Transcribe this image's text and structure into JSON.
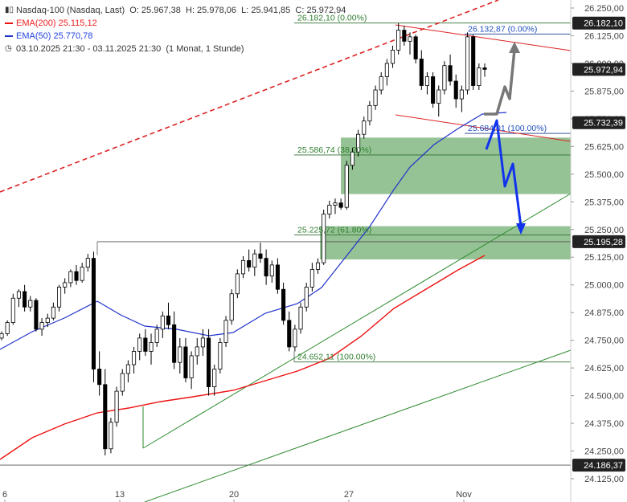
{
  "legend": {
    "instrument": "Nasdaq-100 (Nasdaq, Last)",
    "open": "O: 25.967,38",
    "high": "H: 25.978,06",
    "low": "L: 25.941,85",
    "close": "C: 25.972,94",
    "ema200": "EMA(200) 25.115,12",
    "ema50": "EMA(50) 25.770,78",
    "range": "03.10.2025 21:30 - 03.11.2025 21:30",
    "interval": "(1 Monat, 1 Stunde)"
  },
  "colors": {
    "up_candle": "#ffffff",
    "down_candle": "#000000",
    "ema200": "#ee1111",
    "ema50": "#2233cc",
    "trend_green": "#2e8b2e",
    "zone_green": "#8fc08f",
    "fib_text": "#2e7d2e",
    "fib_text_blue": "#1f4fbf",
    "tag_bg": "#222222",
    "arrow_blue": "#1133ee",
    "arrow_gray": "#777777"
  },
  "chart_data": {
    "type": "candlestick",
    "y_axis": {
      "range": [
        24100,
        26275
      ],
      "ticks": [
        24125,
        24250,
        24375,
        24500,
        24625,
        24750,
        24875,
        25000,
        25125,
        25250,
        25375,
        25500,
        25625,
        25750,
        25875,
        26000,
        26125,
        26250
      ],
      "tick_labels": [
        "24.125,00",
        "24.250,00",
        "24.375,00",
        "24.500,00",
        "24.625,00",
        "24.750,00",
        "24.875,00",
        "25.000,00",
        "25.125,00",
        "25.250,00",
        "25.375,00",
        "25.500,00",
        "25.625,00",
        "25.750,00",
        "25.875,00",
        "26.000,00",
        "26.125,00",
        "26.250,00"
      ]
    },
    "x_axis": {
      "ticks": [
        "6",
        "13",
        "20",
        "27",
        "Nov"
      ]
    },
    "price_tags": [
      {
        "value": 26182.1,
        "label": "26.182,10"
      },
      {
        "value": 25972.94,
        "label": "25.972,94"
      },
      {
        "value": 25732.39,
        "label": "25.732,39"
      },
      {
        "value": 25195.28,
        "label": "25.195,28"
      },
      {
        "value": 24186.37,
        "label": "24.186,37"
      }
    ],
    "fib_levels": [
      {
        "value": 26182.1,
        "label": "26.182,10 (0.00%)"
      },
      {
        "value": 26132.87,
        "label": "26.132,87 (0.00%)"
      },
      {
        "value": 25684.01,
        "label": "25.684,01 (100.00%)"
      },
      {
        "value": 25586.74,
        "label": "25.586,74 (38.20%)"
      },
      {
        "value": 25225.72,
        "label": "25.225,72 (61.80%)"
      },
      {
        "value": 24652.11,
        "label": "24.652,11 (100.00%)"
      }
    ],
    "zones": [
      {
        "from": 25410,
        "to": 25665
      },
      {
        "from": 25115,
        "to": 25265
      }
    ],
    "candles": [
      [
        24760,
        24790,
        24750,
        24780
      ],
      [
        24780,
        24840,
        24770,
        24830
      ],
      [
        24830,
        24960,
        24820,
        24940
      ],
      [
        24940,
        24980,
        24900,
        24970
      ],
      [
        24970,
        25000,
        24880,
        24900
      ],
      [
        24900,
        24950,
        24880,
        24930
      ],
      [
        24930,
        24940,
        24790,
        24800
      ],
      [
        24800,
        24850,
        24770,
        24830
      ],
      [
        24830,
        24870,
        24810,
        24850
      ],
      [
        24850,
        24920,
        24840,
        24900
      ],
      [
        24900,
        25000,
        24880,
        24990
      ],
      [
        24990,
        25030,
        24960,
        25010
      ],
      [
        25010,
        25070,
        24990,
        25060
      ],
      [
        25060,
        25090,
        25000,
        25020
      ],
      [
        25020,
        25100,
        25010,
        25080
      ],
      [
        25080,
        25140,
        25060,
        25120
      ],
      [
        25120,
        25150,
        24560,
        24620
      ],
      [
        24620,
        24700,
        24500,
        24550
      ],
      [
        24550,
        24620,
        24230,
        24260
      ],
      [
        24260,
        24400,
        24240,
        24380
      ],
      [
        24380,
        24540,
        24360,
        24520
      ],
      [
        24520,
        24620,
        24500,
        24600
      ],
      [
        24600,
        24660,
        24560,
        24640
      ],
      [
        24640,
        24720,
        24600,
        24700
      ],
      [
        24700,
        24780,
        24660,
        24760
      ],
      [
        24760,
        24800,
        24680,
        24700
      ],
      [
        24700,
        24780,
        24640,
        24740
      ],
      [
        24740,
        24820,
        24720,
        24800
      ],
      [
        24800,
        24880,
        24760,
        24860
      ],
      [
        24860,
        24920,
        24800,
        24820
      ],
      [
        24820,
        24880,
        24620,
        24650
      ],
      [
        24650,
        24760,
        24600,
        24720
      ],
      [
        24720,
        24760,
        24560,
        24580
      ],
      [
        24580,
        24700,
        24530,
        24680
      ],
      [
        24680,
        24760,
        24640,
        24720
      ],
      [
        24720,
        24800,
        24680,
        24760
      ],
      [
        24760,
        24800,
        24500,
        24540
      ],
      [
        24540,
        24640,
        24500,
        24620
      ],
      [
        24620,
        24760,
        24600,
        24740
      ],
      [
        24740,
        24860,
        24720,
        24840
      ],
      [
        24840,
        24980,
        24820,
        24960
      ],
      [
        24960,
        25070,
        24940,
        25050
      ],
      [
        25050,
        25130,
        25030,
        25110
      ],
      [
        25110,
        25160,
        25060,
        25080
      ],
      [
        25080,
        25160,
        25040,
        25140
      ],
      [
        25140,
        25190,
        25100,
        25120
      ],
      [
        25120,
        25160,
        25000,
        25040
      ],
      [
        25040,
        25110,
        25010,
        25090
      ],
      [
        25090,
        25120,
        24960,
        24980
      ],
      [
        24980,
        25010,
        24820,
        24840
      ],
      [
        24840,
        24880,
        24700,
        24720
      ],
      [
        24720,
        24820,
        24700,
        24800
      ],
      [
        24800,
        24920,
        24780,
        24900
      ],
      [
        24900,
        25010,
        24880,
        24990
      ],
      [
        24990,
        25100,
        24970,
        25070
      ],
      [
        25070,
        25120,
        25050,
        25100
      ],
      [
        25100,
        25340,
        25090,
        25320
      ],
      [
        25320,
        25380,
        25300,
        25360
      ],
      [
        25360,
        25390,
        25320,
        25370
      ],
      [
        25370,
        25390,
        25340,
        25350
      ],
      [
        25350,
        25560,
        25340,
        25540
      ],
      [
        25540,
        25620,
        25520,
        25600
      ],
      [
        25600,
        25700,
        25580,
        25680
      ],
      [
        25680,
        25760,
        25660,
        25740
      ],
      [
        25740,
        25830,
        25720,
        25810
      ],
      [
        25810,
        25900,
        25790,
        25880
      ],
      [
        25880,
        25960,
        25860,
        25940
      ],
      [
        25940,
        26020,
        25900,
        26000
      ],
      [
        26000,
        26080,
        25980,
        26060
      ],
      [
        26060,
        26182,
        26040,
        26150
      ],
      [
        26150,
        26170,
        26080,
        26100
      ],
      [
        26100,
        26140,
        26040,
        26120
      ],
      [
        26120,
        26130,
        26000,
        26020
      ],
      [
        26020,
        26060,
        25880,
        25900
      ],
      [
        25900,
        25960,
        25860,
        25940
      ],
      [
        25940,
        25960,
        25800,
        25820
      ],
      [
        25820,
        25900,
        25760,
        25880
      ],
      [
        25880,
        26010,
        25860,
        25990
      ],
      [
        25990,
        26040,
        25900,
        25920
      ],
      [
        25920,
        25950,
        25800,
        25840
      ],
      [
        25840,
        25900,
        25780,
        25880
      ],
      [
        25880,
        26140,
        25860,
        26120
      ],
      [
        26120,
        26130,
        25880,
        25900
      ],
      [
        25900,
        26000,
        25880,
        25980
      ],
      [
        25980,
        26000,
        25940,
        25973
      ]
    ]
  }
}
